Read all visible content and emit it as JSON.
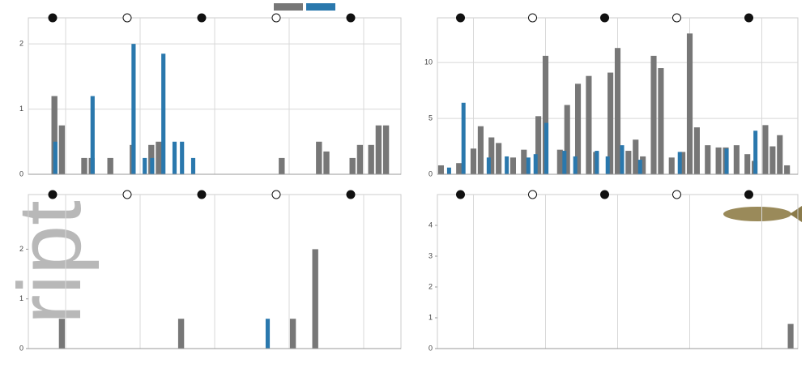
{
  "watermark": "ript",
  "chart_data": [
    {
      "type": "bar",
      "xlim": [
        0,
        100
      ],
      "ylim": [
        0,
        2.4
      ],
      "yticks": [
        0,
        1,
        2
      ],
      "grid": true,
      "series": [
        {
          "color": "#777777",
          "x": [
            7,
            9,
            15,
            17,
            22,
            28,
            33,
            35,
            68,
            78,
            80,
            87,
            89,
            92,
            94,
            96
          ],
          "values": [
            1.2,
            0.75,
            0.25,
            0.25,
            0.25,
            0.45,
            0.45,
            0.5,
            0.25,
            0.5,
            0.35,
            0.25,
            0.45,
            0.45,
            0.75,
            0.75
          ]
        },
        {
          "color": "#2a78ad",
          "x": [
            7,
            17,
            28,
            31,
            33,
            36,
            39,
            41,
            44
          ],
          "values": [
            0.5,
            1.2,
            2.0,
            0.25,
            0.25,
            1.85,
            0.5,
            0.5,
            0.25
          ]
        }
      ]
    },
    {
      "type": "bar",
      "xlim": [
        0,
        100
      ],
      "ylim": [
        0,
        14
      ],
      "yticks": [
        0,
        5,
        10
      ],
      "grid": true,
      "series": [
        {
          "color": "#777777",
          "x": [
            1,
            6,
            10,
            12,
            15,
            17,
            21,
            24,
            28,
            30,
            34,
            36,
            39,
            42,
            44,
            48,
            50,
            53,
            55,
            57,
            60,
            62,
            65,
            68,
            70,
            72,
            75,
            78,
            80,
            83,
            86,
            88,
            91,
            93,
            95,
            97
          ],
          "values": [
            0.8,
            1.0,
            2.3,
            4.3,
            3.3,
            2.8,
            1.5,
            2.2,
            5.2,
            10.6,
            2.2,
            6.2,
            8.1,
            8.8,
            2.0,
            9.1,
            11.3,
            2.1,
            3.1,
            1.6,
            10.6,
            9.5,
            1.5,
            2.0,
            12.6,
            4.2,
            2.6,
            2.4,
            2.4,
            2.6,
            1.8,
            1.2,
            4.4,
            2.5,
            3.5,
            0.8
          ]
        },
        {
          "color": "#2a78ad",
          "x": [
            3,
            7,
            14,
            19,
            25,
            27,
            30,
            35,
            38,
            44,
            47,
            51,
            56,
            67,
            80,
            88
          ],
          "values": [
            0.6,
            6.4,
            1.5,
            1.6,
            1.5,
            1.8,
            4.6,
            2.1,
            1.6,
            2.1,
            1.6,
            2.6,
            1.3,
            2.0,
            2.3,
            3.9
          ]
        }
      ]
    },
    {
      "type": "bar",
      "xlim": [
        0,
        100
      ],
      "ylim": [
        0,
        3.1
      ],
      "yticks": [
        0,
        1,
        2
      ],
      "grid": false,
      "series": [
        {
          "color": "#777777",
          "x": [
            9,
            41,
            71,
            77
          ],
          "values": [
            0.6,
            0.6,
            0.6,
            2.0
          ]
        },
        {
          "color": "#2a78ad",
          "x": [
            64
          ],
          "values": [
            0.6
          ]
        }
      ]
    },
    {
      "type": "bar",
      "xlim": [
        0,
        100
      ],
      "ylim": [
        0,
        5
      ],
      "yticks": [
        0,
        1,
        2,
        3,
        4
      ],
      "grid": false,
      "series": [
        {
          "color": "#777777",
          "x": [
            98
          ],
          "values": [
            0.8
          ]
        }
      ]
    }
  ]
}
